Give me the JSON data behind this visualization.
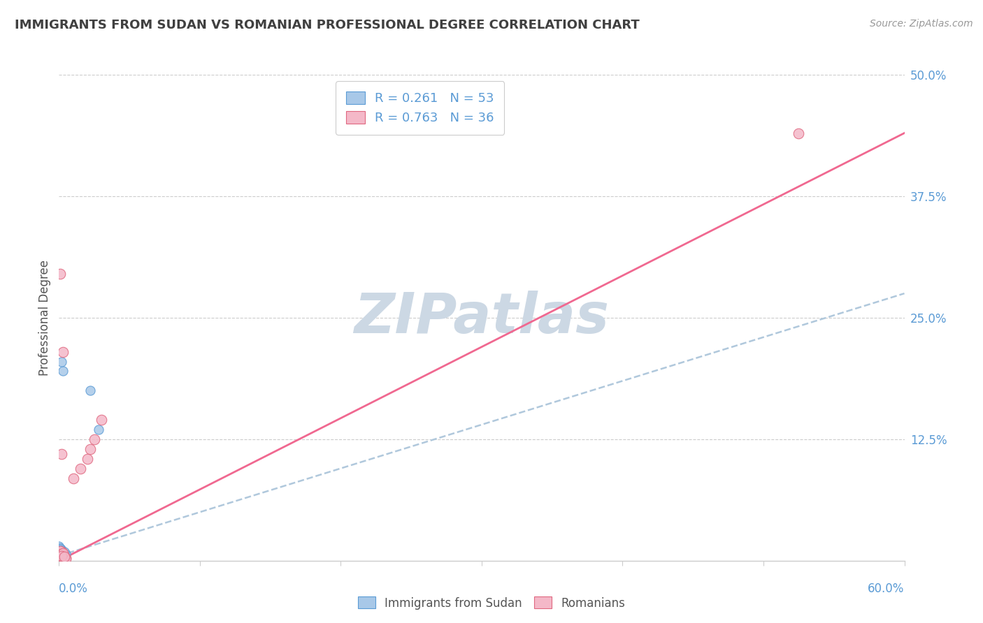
{
  "title": "IMMIGRANTS FROM SUDAN VS ROMANIAN PROFESSIONAL DEGREE CORRELATION CHART",
  "source": "Source: ZipAtlas.com",
  "ylabel": "Professional Degree",
  "xlim": [
    0.0,
    0.6
  ],
  "ylim": [
    0.0,
    0.5
  ],
  "blue_R": 0.261,
  "blue_N": 53,
  "pink_R": 0.763,
  "pink_N": 36,
  "blue_color": "#a8c8e8",
  "blue_edge_color": "#5b9bd5",
  "pink_color": "#f4b8c8",
  "pink_edge_color": "#e06880",
  "blue_line_color": "#b0c8dc",
  "pink_line_color": "#f06890",
  "watermark": "ZIPatlas",
  "watermark_color": "#ccd8e4",
  "title_color": "#404040",
  "axis_label_color": "#5b9bd5",
  "grid_color": "#cccccc",
  "blue_scatter_x": [
    0.002,
    0.001,
    0.003,
    0.004,
    0.001,
    0.002,
    0.0,
    0.003,
    0.005,
    0.001,
    0.002,
    0.0,
    0.001,
    0.003,
    0.002,
    0.004,
    0.001,
    0.002,
    0.003,
    0.0,
    0.001,
    0.002,
    0.004,
    0.003,
    0.001,
    0.002,
    0.003,
    0.005,
    0.001,
    0.002,
    0.003,
    0.001,
    0.004,
    0.002,
    0.003,
    0.001,
    0.002,
    0.003,
    0.004,
    0.001,
    0.002,
    0.003,
    0.001,
    0.002,
    0.004,
    0.028,
    0.003,
    0.001,
    0.002,
    0.004,
    0.003,
    0.002,
    0.022
  ],
  "blue_scatter_y": [
    0.005,
    0.008,
    0.003,
    0.002,
    0.01,
    0.006,
    0.012,
    0.004,
    0.007,
    0.009,
    0.003,
    0.015,
    0.006,
    0.002,
    0.011,
    0.004,
    0.013,
    0.007,
    0.003,
    0.008,
    0.005,
    0.009,
    0.002,
    0.006,
    0.011,
    0.004,
    0.007,
    0.003,
    0.013,
    0.005,
    0.008,
    0.01,
    0.003,
    0.006,
    0.004,
    0.009,
    0.002,
    0.007,
    0.005,
    0.011,
    0.003,
    0.006,
    0.008,
    0.004,
    0.002,
    0.135,
    0.005,
    0.007,
    0.003,
    0.009,
    0.195,
    0.205,
    0.175
  ],
  "pink_scatter_x": [
    0.001,
    0.003,
    0.002,
    0.004,
    0.002,
    0.001,
    0.003,
    0.002,
    0.004,
    0.001,
    0.003,
    0.002,
    0.005,
    0.003,
    0.001,
    0.004,
    0.002,
    0.003,
    0.002,
    0.001,
    0.004,
    0.002,
    0.005,
    0.003,
    0.002,
    0.004,
    0.001,
    0.003,
    0.002,
    0.525,
    0.025,
    0.02,
    0.015,
    0.01,
    0.03,
    0.022
  ],
  "pink_scatter_y": [
    0.003,
    0.006,
    0.004,
    0.002,
    0.008,
    0.005,
    0.003,
    0.009,
    0.004,
    0.007,
    0.002,
    0.006,
    0.003,
    0.008,
    0.005,
    0.003,
    0.009,
    0.004,
    0.006,
    0.01,
    0.003,
    0.007,
    0.002,
    0.008,
    0.005,
    0.004,
    0.295,
    0.215,
    0.11,
    0.44,
    0.125,
    0.105,
    0.095,
    0.085,
    0.145,
    0.115
  ],
  "blue_trend_x": [
    0.0,
    0.6
  ],
  "blue_trend_y": [
    0.005,
    0.275
  ],
  "pink_trend_x": [
    0.0,
    0.6
  ],
  "pink_trend_y": [
    0.0,
    0.44
  ]
}
